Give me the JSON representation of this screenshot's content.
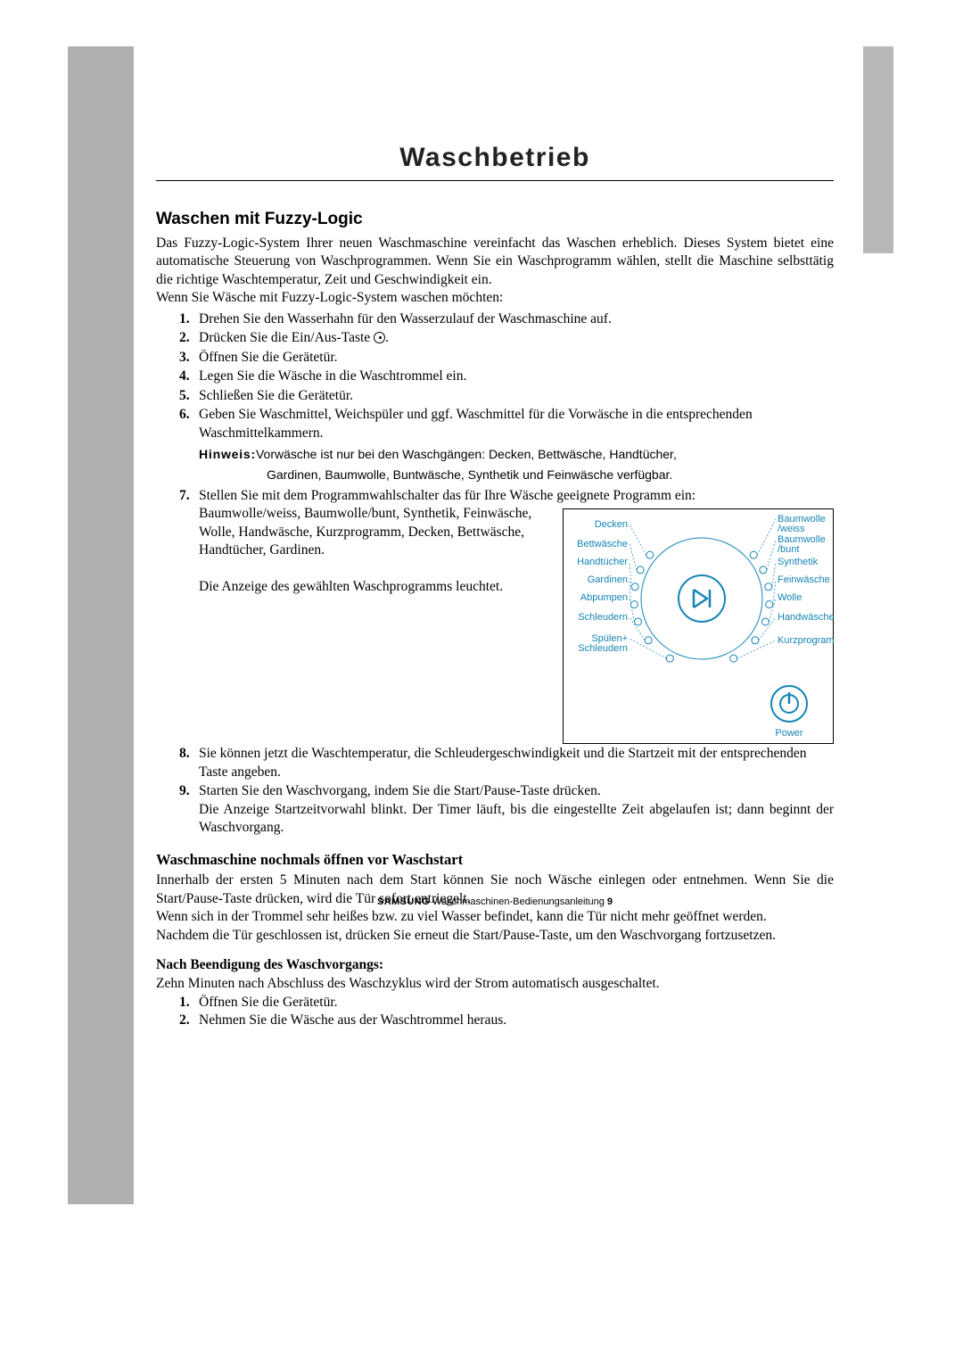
{
  "colors": {
    "sidebar_gray": "#b0b0b0",
    "right_bar_gray": "#b7b7b7",
    "dial_label_color": "#1584b5",
    "text_color": "#000000",
    "background": "#ffffff"
  },
  "chapter_title": "Waschbetrieb",
  "section_title": "Waschen mit Fuzzy-Logic",
  "intro_p1": "Das Fuzzy-Logic-System Ihrer neuen Waschmaschine vereinfacht das Waschen erheblich. Dieses System bietet eine automatische Steuerung von Waschprogrammen. Wenn Sie ein Waschprogramm wählen, stellt die Maschine selbsttätig die richtige Waschtemperatur, Zeit und Geschwindigkeit ein.",
  "intro_p2": "Wenn Sie Wäsche mit Fuzzy-Logic-System waschen möchten:",
  "steps": {
    "s1": "Drehen Sie den Wasserhahn für den Wasserzulauf der Waschmaschine auf.",
    "s2_a": "Drücken Sie die Ein/Aus-Taste ",
    "s2_b": ".",
    "s3": "Öffnen Sie die Gerätetür.",
    "s4": "Legen Sie die Wäsche in die Waschtrommel ein.",
    "s5": "Schließen Sie die Gerätetür.",
    "s6": "Geben Sie Waschmittel, Weichspüler und ggf. Waschmittel für die Vorwäsche in die entsprechenden Waschmittelkammern.",
    "s7": "Stellen Sie mit dem Programmwahlschalter das für Ihre Wäsche geeignete Programm ein:",
    "s7_list": "Baumwolle/weiss, Baumwolle/bunt, Synthetik, Feinwäsche, Wolle, Handwäsche, Kurzprogramm, Decken, Bettwäsche, Handtücher, Gardinen.",
    "s7_note": "Die Anzeige des gewählten Waschprogramms leuchtet.",
    "s8": "Sie können jetzt die Waschtemperatur, die Schleudergeschwindigkeit und die Startzeit mit der entsprechenden Taste angeben.",
    "s9_a": "Starten Sie den Waschvorgang, indem Sie die Start/Pause-Taste drücken.",
    "s9_b": "Die Anzeige Startzeitvorwahl blinkt. Der Timer läuft, bis die eingestellte Zeit abgelaufen ist; dann beginnt der Waschvorgang."
  },
  "hinweis": {
    "label": "Hinweis:",
    "line1": "Vorwäsche ist nur bei den Waschgängen: Decken, Bettwäsche, Handtücher,",
    "line2": "Gardinen, Baumwolle, Buntwäsche, Synthetik und Feinwäsche verfügbar."
  },
  "dial": {
    "left_labels": [
      "Decken",
      "Bettwäsche",
      "Handtücher",
      "Gardinen",
      "Abpumpen",
      "Schleudern",
      "Spülen+\nSchleudern"
    ],
    "right_labels": [
      "Baumwolle\n/weiss",
      "Baumwolle\n/bunt",
      "Synthetik",
      "Feinwäsche",
      "Wolle",
      "Handwäsche",
      "Kurzprogramm"
    ],
    "power_label": "Power",
    "outer_radius": 68,
    "knob_radius": 26,
    "led_radius": 4,
    "led_outer_radius": 76,
    "power_button_radius": 20
  },
  "subsection_title": "Waschmaschine nochmals öffnen vor Waschstart",
  "sub_p1": "Innerhalb der ersten 5 Minuten nach dem Start können Sie noch Wäsche einlegen oder entnehmen.  Wenn Sie die Start/Pause-Taste drücken, wird die Tür sofort entriegelt.",
  "sub_p2": "Wenn sich in der Trommel sehr heißes bzw. zu viel Wasser befindet, kann die Tür nicht mehr geöffnet werden.",
  "sub_p3": "Nachdem die Tür geschlossen ist, drücken Sie erneut die Start/Pause-Taste, um den Waschvorgang fortzusetzen.",
  "after_title": "Nach Beendigung des Waschvorgangs:",
  "after_intro": "Zehn Minuten nach Abschluss des Waschzyklus wird der Strom automatisch ausgeschaltet.",
  "after_steps": {
    "a1": "Öffnen Sie die Gerätetür.",
    "a2": "Nehmen Sie die Wäsche aus der Waschtrommel heraus."
  },
  "footer": {
    "brand": "SAMSUNG",
    "text": " Waschmaschinen-Bedienungsanleitung ",
    "page": "9"
  }
}
